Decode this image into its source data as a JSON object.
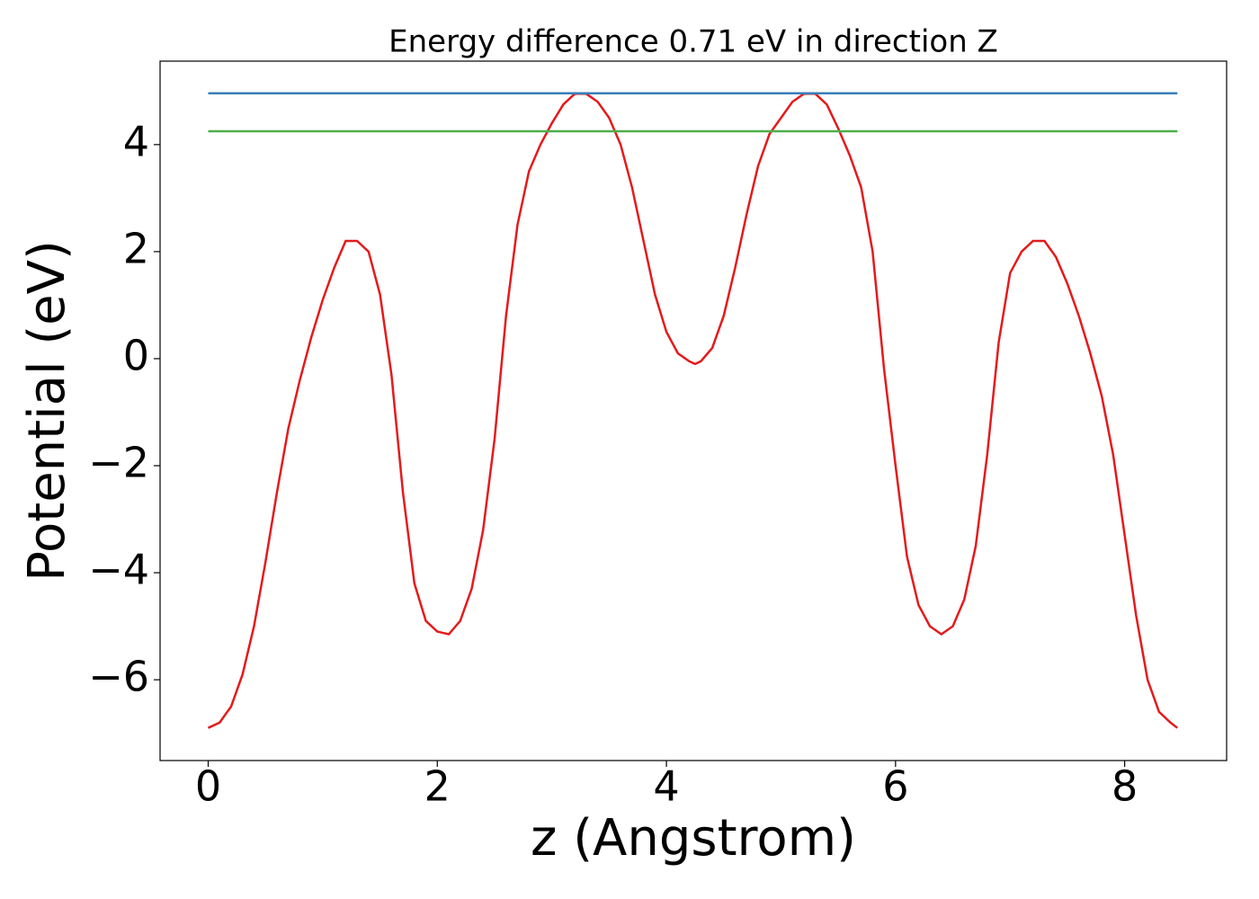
{
  "chart_data": {
    "type": "line",
    "title": "Energy difference 0.71 eV in direction Z",
    "xlabel": "z (Angstrom)",
    "ylabel": "Potential (eV)",
    "xlim": [
      -0.42,
      8.89
    ],
    "ylim": [
      -7.51,
      5.56
    ],
    "xticks": [
      0,
      2,
      4,
      6,
      8
    ],
    "yticks": [
      {
        "value": -6,
        "label": "−6"
      },
      {
        "value": -4,
        "label": "−4"
      },
      {
        "value": -2,
        "label": "−2"
      },
      0,
      2,
      4
    ],
    "series": [
      {
        "color": "#e41a1c",
        "x": [
          0,
          0.1,
          0.2,
          0.3,
          0.4,
          0.5,
          0.6,
          0.7,
          0.8,
          0.9,
          1.0,
          1.1,
          1.2,
          1.3,
          1.4,
          1.5,
          1.6,
          1.7,
          1.8,
          1.9,
          2.0,
          2.1,
          2.2,
          2.3,
          2.4,
          2.5,
          2.6,
          2.7,
          2.8,
          2.9,
          3.0,
          3.1,
          3.2,
          3.3,
          3.4,
          3.5,
          3.6,
          3.7,
          3.8,
          3.9,
          4.0,
          4.1,
          4.2,
          4.25,
          4.3,
          4.4,
          4.5,
          4.6,
          4.7,
          4.8,
          4.9,
          5.0,
          5.1,
          5.2,
          5.3,
          5.4,
          5.5,
          5.6,
          5.7,
          5.8,
          5.9,
          6.0,
          6.1,
          6.2,
          6.3,
          6.4,
          6.5,
          6.6,
          6.7,
          6.8,
          6.9,
          7.0,
          7.1,
          7.2,
          7.3,
          7.4,
          7.5,
          7.6,
          7.7,
          7.8,
          7.9,
          8.0,
          8.1,
          8.2,
          8.3,
          8.4,
          8.46
        ],
        "values": [
          -6.9,
          -6.8,
          -6.5,
          -5.9,
          -5.0,
          -3.8,
          -2.5,
          -1.3,
          -0.4,
          0.4,
          1.1,
          1.7,
          2.2,
          2.2,
          2.0,
          1.2,
          -0.3,
          -2.5,
          -4.2,
          -4.9,
          -5.1,
          -5.15,
          -4.9,
          -4.3,
          -3.2,
          -1.5,
          0.8,
          2.5,
          3.5,
          4.0,
          4.4,
          4.75,
          4.95,
          4.95,
          4.8,
          4.5,
          4.0,
          3.2,
          2.2,
          1.2,
          0.5,
          0.1,
          -0.05,
          -0.1,
          -0.05,
          0.2,
          0.8,
          1.7,
          2.7,
          3.6,
          4.2,
          4.5,
          4.8,
          4.95,
          4.95,
          4.75,
          4.3,
          3.8,
          3.2,
          2.0,
          -0.2,
          -2.0,
          -3.7,
          -4.6,
          -5.0,
          -5.15,
          -5.0,
          -4.5,
          -3.5,
          -1.8,
          0.3,
          1.6,
          2.0,
          2.2,
          2.2,
          1.9,
          1.4,
          0.8,
          0.1,
          -0.7,
          -1.8,
          -3.3,
          -4.8,
          -6.0,
          -6.6,
          -6.8,
          -6.9
        ]
      },
      {
        "color": "#377eb8",
        "x": [
          0,
          8.46
        ],
        "values": [
          4.96,
          4.96
        ]
      },
      {
        "color": "#4daf4a",
        "x": [
          0,
          8.46
        ],
        "values": [
          4.25,
          4.25
        ]
      }
    ]
  }
}
